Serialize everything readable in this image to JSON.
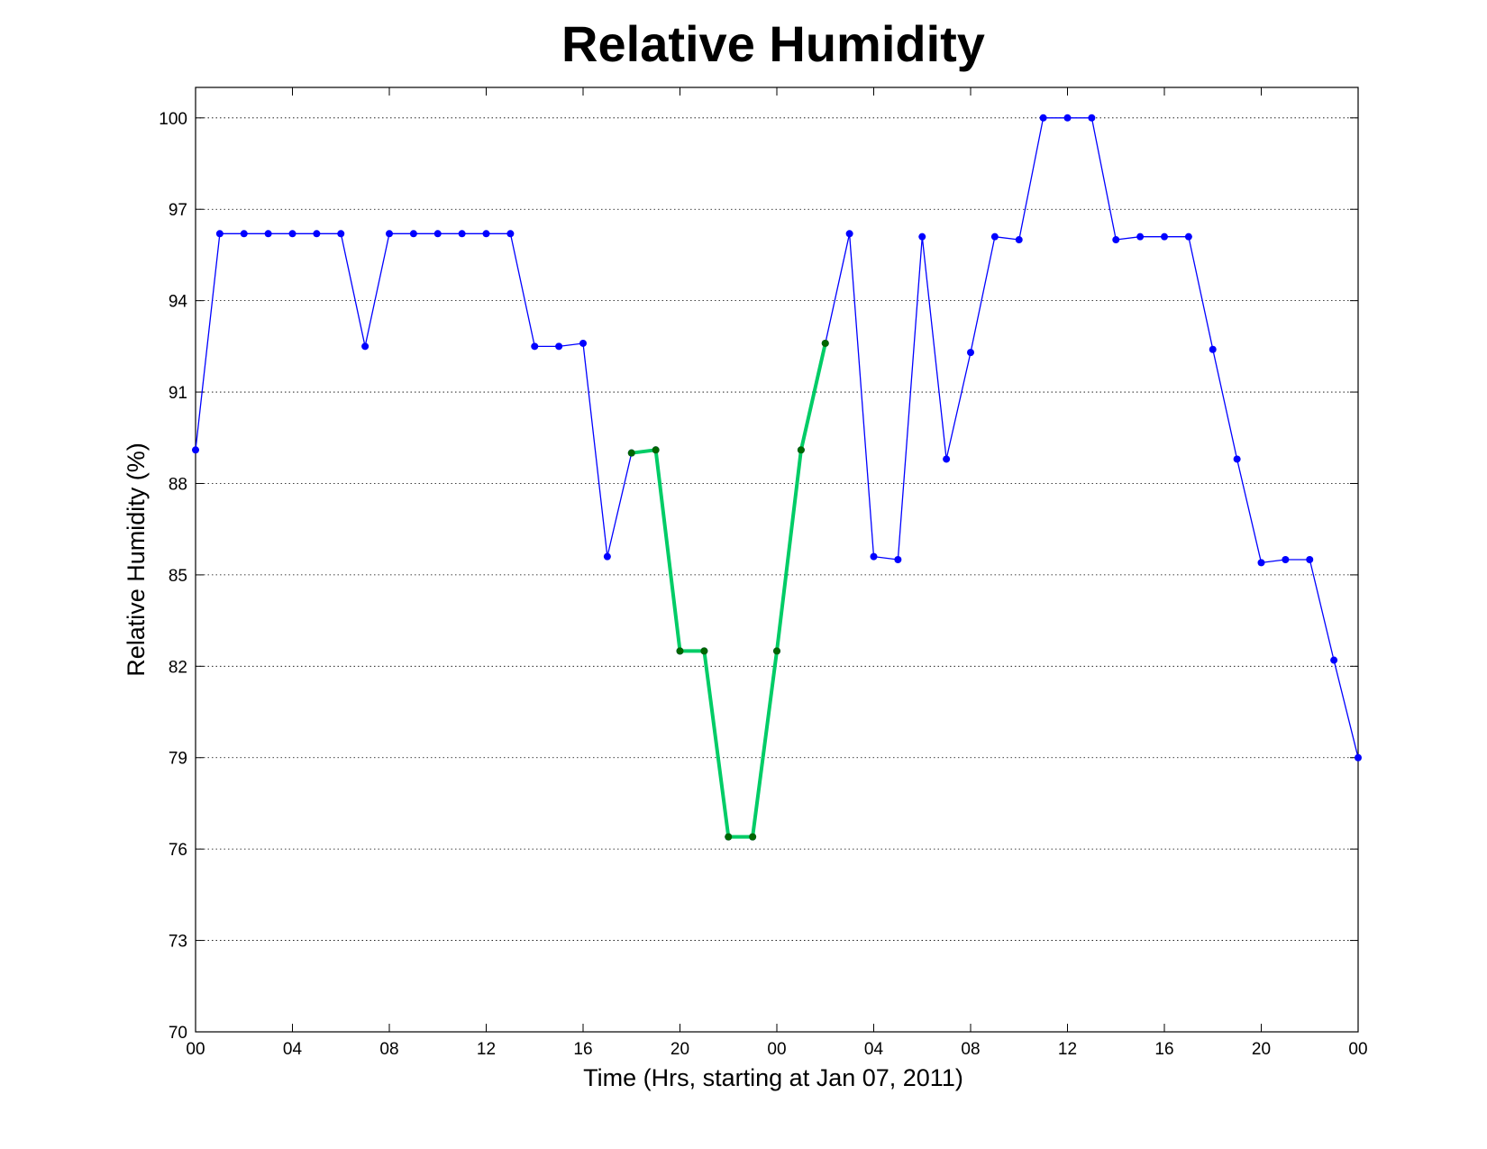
{
  "chart_data": {
    "type": "line",
    "title": "Relative Humidity",
    "xlabel": "Time (Hrs, starting at Jan 07, 2011)",
    "ylabel": "Relative Humidity (%)",
    "xlim": [
      0,
      48
    ],
    "ylim": [
      70,
      101
    ],
    "grid": "horizontal-dotted",
    "x_ticks": [
      0,
      4,
      8,
      12,
      16,
      20,
      24,
      28,
      32,
      36,
      40,
      44,
      48
    ],
    "x_tick_labels": [
      "00",
      "04",
      "08",
      "12",
      "16",
      "20",
      "00",
      "04",
      "08",
      "12",
      "16",
      "20",
      "00"
    ],
    "y_ticks": [
      70,
      73,
      76,
      79,
      82,
      85,
      88,
      91,
      94,
      97,
      100
    ],
    "y_tick_labels": [
      "70",
      "73",
      "76",
      "79",
      "82",
      "85",
      "88",
      "91",
      "94",
      "97",
      "100"
    ],
    "series": [
      {
        "color": "#0000ff",
        "marker_color": "#0000ff",
        "x": [
          0,
          1,
          2,
          3,
          4,
          5,
          6,
          7,
          8,
          9,
          10,
          11,
          12,
          13,
          14,
          15,
          16,
          17,
          18,
          19,
          20,
          21,
          22,
          23,
          24,
          25,
          26,
          27,
          28,
          29,
          30,
          31,
          32,
          33,
          34,
          35,
          36,
          37,
          38,
          39,
          40,
          41,
          42,
          43,
          44,
          45,
          46,
          47,
          48
        ],
        "y": [
          89.1,
          96.2,
          96.2,
          96.2,
          96.2,
          96.2,
          96.2,
          92.5,
          96.2,
          96.2,
          96.2,
          96.2,
          96.2,
          96.2,
          92.5,
          92.5,
          92.6,
          85.6,
          89.0,
          89.1,
          82.5,
          82.5,
          76.4,
          76.4,
          82.5,
          89.1,
          92.6,
          96.2,
          85.6,
          85.5,
          96.1,
          88.8,
          92.3,
          96.1,
          96.0,
          100.0,
          100.0,
          100.0,
          96.0,
          96.1,
          96.1,
          96.1,
          92.4,
          88.8,
          85.4,
          85.5,
          85.5,
          82.2,
          79.0
        ]
      },
      {
        "color": "#00cc66",
        "marker_color": "#006600",
        "x": [
          18,
          19,
          20,
          21,
          22,
          23,
          24,
          25,
          26
        ],
        "y": [
          89.0,
          89.1,
          82.5,
          82.5,
          76.4,
          76.4,
          82.5,
          89.1,
          92.6
        ]
      }
    ]
  }
}
